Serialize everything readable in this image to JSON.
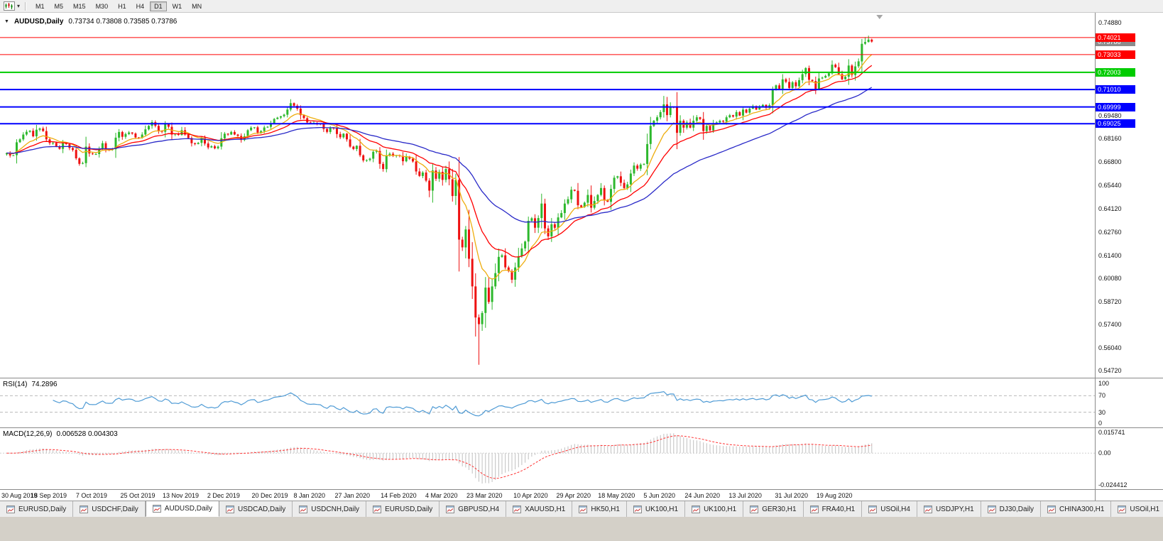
{
  "toolbar": {
    "chart_type_icon": "candlestick-chart-icon",
    "dropdown_icon": "▾",
    "timeframes": [
      "M1",
      "M5",
      "M15",
      "M30",
      "H1",
      "H4",
      "D1",
      "W1",
      "MN"
    ],
    "active_timeframe": "D1"
  },
  "chart_header": {
    "collapse_icon": "▼",
    "symbol": "AUDUSD,Daily",
    "ohlc": "0.73734 0.73808 0.73585 0.73786"
  },
  "price_axis": {
    "ticks": [
      "0.74880",
      "0.69480",
      "0.68160",
      "0.66800",
      "0.65440",
      "0.64120",
      "0.62760",
      "0.61400",
      "0.60080",
      "0.58720",
      "0.57400",
      "0.56040",
      "0.54720"
    ],
    "current_price": "0.73786",
    "current_price_box_color": "#8c8c8c"
  },
  "hlines": [
    {
      "price": 0.74021,
      "label": "0.74021",
      "color": "#ff0000",
      "width": 1
    },
    {
      "price": 0.73033,
      "label": "0.73033",
      "color": "#ff0000",
      "width": 1
    },
    {
      "price": 0.72003,
      "label": "0.72003",
      "color": "#00cc00",
      "width": 2
    },
    {
      "price": 0.7101,
      "label": "0.71010",
      "color": "#0000ff",
      "width": 2
    },
    {
      "price": 0.69999,
      "label": "0.69999",
      "color": "#0000ff",
      "width": 2
    },
    {
      "price": 0.69025,
      "label": "0.69025",
      "color": "#0000ff",
      "width": 2
    }
  ],
  "indicators": {
    "rsi": {
      "label": "RSI(14)",
      "value": "74.2896",
      "period": 14,
      "color": "#4f9bd5",
      "axis_labels": [
        {
          "label": "100",
          "value": 100
        },
        {
          "label": "70",
          "value": 70
        },
        {
          "label": "30",
          "value": 30
        },
        {
          "label": "0",
          "value": 0
        }
      ],
      "dashed_levels": [
        70,
        30
      ],
      "range": [
        0,
        100
      ]
    },
    "macd": {
      "label": "MACD(12,26,9)",
      "value": "0.006528 0.004303",
      "fast": 12,
      "slow": 26,
      "signal": 9,
      "histogram_color": "#c0c0c0",
      "signal_color": "#ff3333",
      "axis_labels": [
        {
          "label": "0.015741",
          "value": 0.015741
        },
        {
          "label": "0.00",
          "value": 0
        },
        {
          "label": "-0.024412",
          "value": -0.024412
        }
      ],
      "range": [
        -0.024412,
        0.015741
      ]
    }
  },
  "date_axis": [
    {
      "label": "30 Aug 2019",
      "index": 0
    },
    {
      "label": "18 Sep 2019",
      "index": 13
    },
    {
      "label": "7 Oct 2019",
      "index": 26
    },
    {
      "label": "25 Oct 2019",
      "index": 40
    },
    {
      "label": "13 Nov 2019",
      "index": 53
    },
    {
      "label": "2 Dec 2019",
      "index": 66
    },
    {
      "label": "20 Dec 2019",
      "index": 80
    },
    {
      "label": "8 Jan 2020",
      "index": 92
    },
    {
      "label": "27 Jan 2020",
      "index": 105
    },
    {
      "label": "14 Feb 2020",
      "index": 119
    },
    {
      "label": "4 Mar 2020",
      "index": 132
    },
    {
      "label": "23 Mar 2020",
      "index": 145
    },
    {
      "label": "10 Apr 2020",
      "index": 159
    },
    {
      "label": "29 Apr 2020",
      "index": 172
    },
    {
      "label": "18 May 2020",
      "index": 185
    },
    {
      "label": "5 Jun 2020",
      "index": 198
    },
    {
      "label": "24 Jun 2020",
      "index": 211
    },
    {
      "label": "13 Jul 2020",
      "index": 224
    },
    {
      "label": "31 Jul 2020",
      "index": 238
    },
    {
      "label": "19 Aug 2020",
      "index": 251
    }
  ],
  "tabs": [
    {
      "label": "EURUSD,Daily",
      "active": false
    },
    {
      "label": "USDCHF,Daily",
      "active": false
    },
    {
      "label": "AUDUSD,Daily",
      "active": true
    },
    {
      "label": "USDCAD,Daily",
      "active": false
    },
    {
      "label": "USDCNH,Daily",
      "active": false
    },
    {
      "label": "EURUSD,Daily",
      "active": false
    },
    {
      "label": "GBPUSD,H4",
      "active": false
    },
    {
      "label": "XAUUSD,H1",
      "active": false
    },
    {
      "label": "HK50,H1",
      "active": false
    },
    {
      "label": "UK100,H1",
      "active": false
    },
    {
      "label": "UK100,H1",
      "active": false
    },
    {
      "label": "GER30,H1",
      "active": false
    },
    {
      "label": "FRA40,H1",
      "active": false
    },
    {
      "label": "USOil,H4",
      "active": false
    },
    {
      "label": "USDJPY,H1",
      "active": false
    },
    {
      "label": "DJ30,Daily",
      "active": false
    },
    {
      "label": "CHINA300,H1",
      "active": false
    },
    {
      "label": "USOil,H1",
      "active": false
    }
  ],
  "chart_data": {
    "type": "candlestick",
    "title": "AUDUSD,Daily",
    "symbol": "AUDUSD",
    "timeframe": "Daily",
    "ylim": [
      0.5472,
      0.7488
    ],
    "up_color": "#2db82d",
    "down_color": "#ee1111",
    "moving_averages": [
      {
        "type": "ema",
        "period": 10,
        "color": "#eead0e"
      },
      {
        "type": "ema",
        "period": 21,
        "color": "#ff0000"
      },
      {
        "type": "ema",
        "period": 50,
        "color": "#2929c8"
      }
    ],
    "closes": [
      0.6733,
      0.6718,
      0.672,
      0.6795,
      0.6812,
      0.684,
      0.6856,
      0.6862,
      0.683,
      0.6868,
      0.6875,
      0.686,
      0.6812,
      0.679,
      0.6792,
      0.6772,
      0.6757,
      0.679,
      0.6785,
      0.6762,
      0.6751,
      0.6702,
      0.667,
      0.6674,
      0.677,
      0.673,
      0.6726,
      0.6727,
      0.6757,
      0.679,
      0.6756,
      0.6753,
      0.6755,
      0.6822,
      0.6855,
      0.6827,
      0.6843,
      0.6852,
      0.6846,
      0.6823,
      0.6822,
      0.684,
      0.687,
      0.689,
      0.6912,
      0.689,
      0.6862,
      0.6856,
      0.69,
      0.6885,
      0.684,
      0.6845,
      0.6838,
      0.6865,
      0.684,
      0.682,
      0.679,
      0.6785,
      0.6792,
      0.682,
      0.6788,
      0.6765,
      0.6772,
      0.676,
      0.677,
      0.6818,
      0.6845,
      0.684,
      0.6855,
      0.684,
      0.6832,
      0.6808,
      0.683,
      0.6865,
      0.688,
      0.6882,
      0.6851,
      0.686,
      0.6881,
      0.6885,
      0.6905,
      0.693,
      0.6938,
      0.6946,
      0.6955,
      0.6985,
      0.7022,
      0.7007,
      0.699,
      0.6952,
      0.6935,
      0.691,
      0.6905,
      0.6908,
      0.6903,
      0.69,
      0.6872,
      0.6855,
      0.688,
      0.6875,
      0.6843,
      0.6824,
      0.6845,
      0.6812,
      0.677,
      0.6756,
      0.6775,
      0.672,
      0.669,
      0.6692,
      0.67,
      0.674,
      0.6745,
      0.667,
      0.664,
      0.6718,
      0.6729,
      0.6716,
      0.672,
      0.6716,
      0.6685,
      0.6712,
      0.67,
      0.6684,
      0.6626,
      0.66,
      0.662,
      0.6573,
      0.6515,
      0.6632,
      0.6584,
      0.6624,
      0.6577,
      0.664,
      0.6581,
      0.6484,
      0.6577,
      0.6231,
      0.6186,
      0.629,
      0.612,
      0.596,
      0.578,
      0.5741,
      0.5806,
      0.5953,
      0.587,
      0.596,
      0.6037,
      0.6131,
      0.614,
      0.607,
      0.6049,
      0.5999,
      0.607,
      0.6135,
      0.618,
      0.622,
      0.634,
      0.6355,
      0.63,
      0.6356,
      0.644,
      0.6296,
      0.625,
      0.632,
      0.63,
      0.636,
      0.6385,
      0.644,
      0.6465,
      0.652,
      0.6514,
      0.643,
      0.642,
      0.6445,
      0.649,
      0.6416,
      0.6455,
      0.649,
      0.653,
      0.646,
      0.645,
      0.6525,
      0.659,
      0.6598,
      0.656,
      0.653,
      0.6551,
      0.6614,
      0.666,
      0.6642,
      0.6666,
      0.667,
      0.6785,
      0.689,
      0.692,
      0.694,
      0.697,
      0.7015,
      0.6953,
      0.7,
      0.6998,
      0.685,
      0.692,
      0.688,
      0.691,
      0.688,
      0.692,
      0.694,
      0.693,
      0.686,
      0.689,
      0.6864,
      0.6905,
      0.691,
      0.692,
      0.6915,
      0.694,
      0.6952,
      0.6944,
      0.697,
      0.695,
      0.6985,
      0.6967,
      0.699,
      0.7005,
      0.6985,
      0.7,
      0.7012,
      0.6995,
      0.701,
      0.71,
      0.7125,
      0.7105,
      0.716,
      0.7145,
      0.711,
      0.7143,
      0.712,
      0.7155,
      0.719,
      0.7225,
      0.7157,
      0.715,
      0.7105,
      0.7165,
      0.717,
      0.718,
      0.7195,
      0.7245,
      0.723,
      0.719,
      0.716,
      0.7175,
      0.724,
      0.7185,
      0.7235,
      0.7264,
      0.7366,
      0.7376,
      0.739,
      0.73786
    ],
    "extremes": [
      {
        "i": 143,
        "low": 0.5506
      },
      {
        "i": 199,
        "high": 0.7064
      },
      {
        "i": 260,
        "high": 0.7405
      },
      {
        "i": 261,
        "high": 0.7413
      }
    ]
  }
}
